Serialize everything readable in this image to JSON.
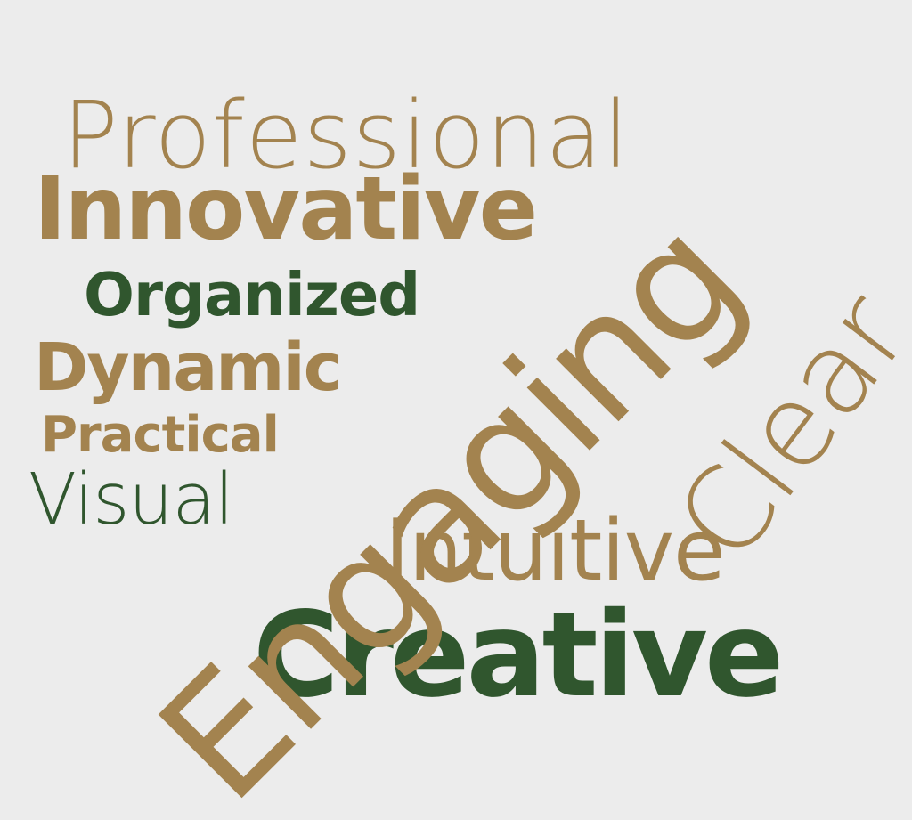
{
  "background": "#ececec",
  "colors": {
    "gold": "#a3834f",
    "green": "#30562e"
  },
  "words": [
    {
      "key": "professional",
      "text": "Professional",
      "color": "gold"
    },
    {
      "key": "innovative",
      "text": "Innovative",
      "color": "gold"
    },
    {
      "key": "organized",
      "text": "Organized",
      "color": "green"
    },
    {
      "key": "dynamic",
      "text": "Dynamic",
      "color": "gold"
    },
    {
      "key": "practical",
      "text": "Practical",
      "color": "gold"
    },
    {
      "key": "visual",
      "text": "Visual",
      "color": "green"
    },
    {
      "key": "engaging",
      "text": "Engaging",
      "color": "gold"
    },
    {
      "key": "clear",
      "text": "Clear",
      "color": "gold"
    },
    {
      "key": "intuitive",
      "text": "Intuitive",
      "color": "gold"
    },
    {
      "key": "creative",
      "text": "Creative",
      "color": "green"
    }
  ]
}
